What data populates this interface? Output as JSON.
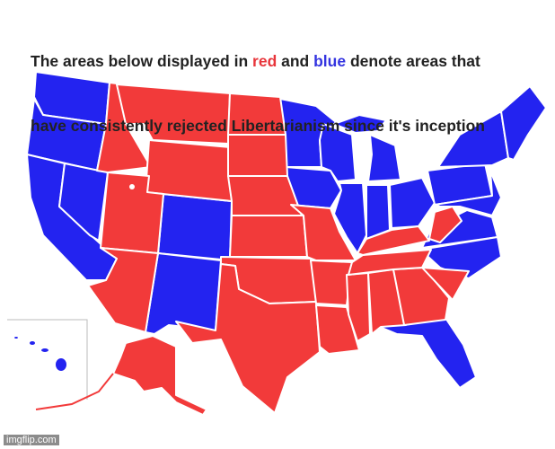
{
  "caption": {
    "line1": [
      "The areas below displayed in ",
      "red",
      " and ",
      "blue",
      " denote areas that"
    ],
    "line2": "have consistently rejected Libertarianism since it's inception"
  },
  "watermark": "imgflip.com"
}
